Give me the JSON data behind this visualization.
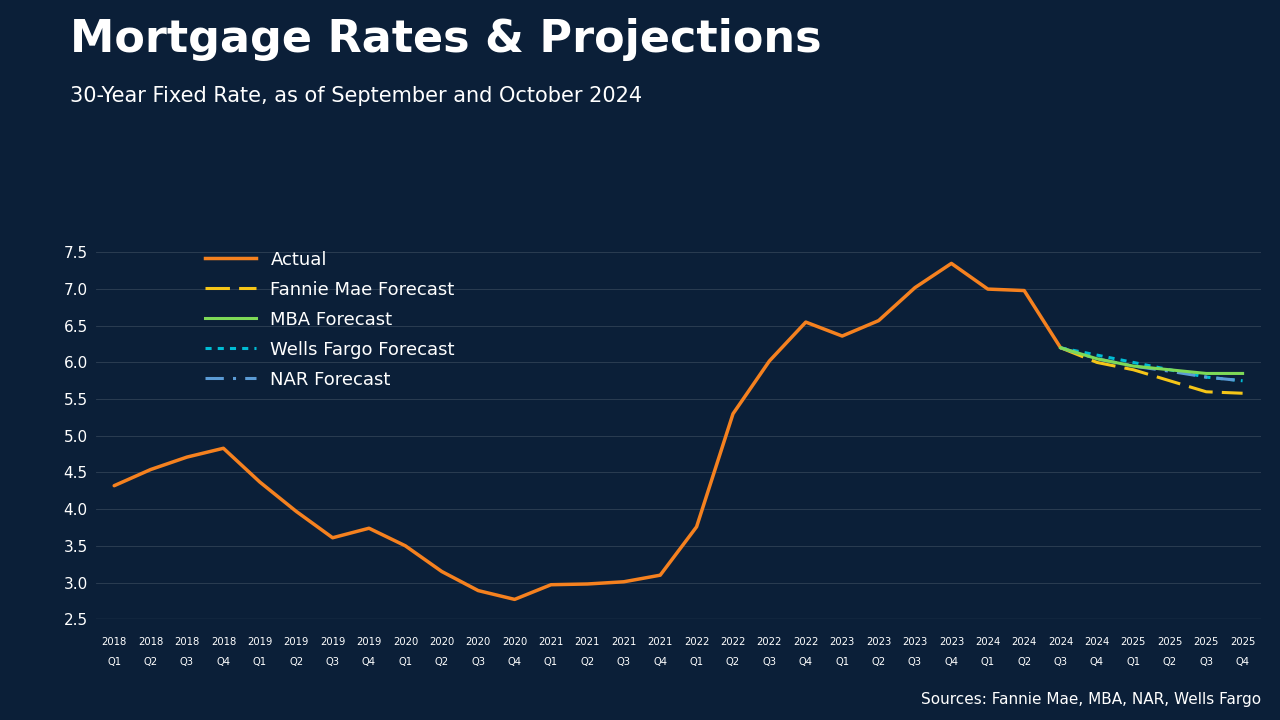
{
  "title": "Mortgage Rates & Projections",
  "subtitle": "30-Year Fixed Rate, as of September and October 2024",
  "source": "Sources: Fannie Mae, MBA, NAR, Wells Fargo",
  "bg_color": "#0b1f38",
  "bottom_bar_color": "#1a7aaa",
  "actual_color": "#f5811f",
  "fannie_color": "#f5c518",
  "mba_color": "#7ed957",
  "wells_color": "#00bcd4",
  "nar_color": "#5b9bd5",
  "actual_x": [
    "2018 Q1",
    "2018 Q2",
    "2018 Q3",
    "2018 Q4",
    "2019 Q1",
    "2019 Q2",
    "2019 Q3",
    "2019 Q4",
    "2020 Q1",
    "2020 Q2",
    "2020 Q3",
    "2020 Q4",
    "2021 Q1",
    "2021 Q2",
    "2021 Q3",
    "2021 Q4",
    "2022 Q1",
    "2022 Q2",
    "2022 Q3",
    "2022 Q4",
    "2023 Q1",
    "2023 Q2",
    "2023 Q3",
    "2023 Q4",
    "2024 Q1",
    "2024 Q2",
    "2024 Q3"
  ],
  "actual_y": [
    4.32,
    4.54,
    4.71,
    4.83,
    4.37,
    3.97,
    3.61,
    3.74,
    3.5,
    3.15,
    2.89,
    2.77,
    2.97,
    2.98,
    3.01,
    3.1,
    3.76,
    5.3,
    6.02,
    6.55,
    6.36,
    6.57,
    7.02,
    7.35,
    7.0,
    6.98,
    6.2
  ],
  "forecast_x": [
    "2024 Q3",
    "2024 Q4",
    "2025 Q1",
    "2025 Q2",
    "2025 Q3",
    "2025 Q4"
  ],
  "fannie_y": [
    6.2,
    6.0,
    5.9,
    5.75,
    5.6,
    5.58
  ],
  "mba_y": [
    6.2,
    6.05,
    5.95,
    5.9,
    5.85,
    5.85
  ],
  "wells_y": [
    6.2,
    6.1,
    6.0,
    5.9,
    5.8,
    5.75
  ],
  "nar_y": [
    6.2,
    6.05,
    5.95,
    5.88,
    5.8,
    5.75
  ],
  "ylim": [
    2.5,
    7.8
  ],
  "yticks": [
    2.5,
    3.0,
    3.5,
    4.0,
    4.5,
    5.0,
    5.5,
    6.0,
    6.5,
    7.0,
    7.5
  ]
}
